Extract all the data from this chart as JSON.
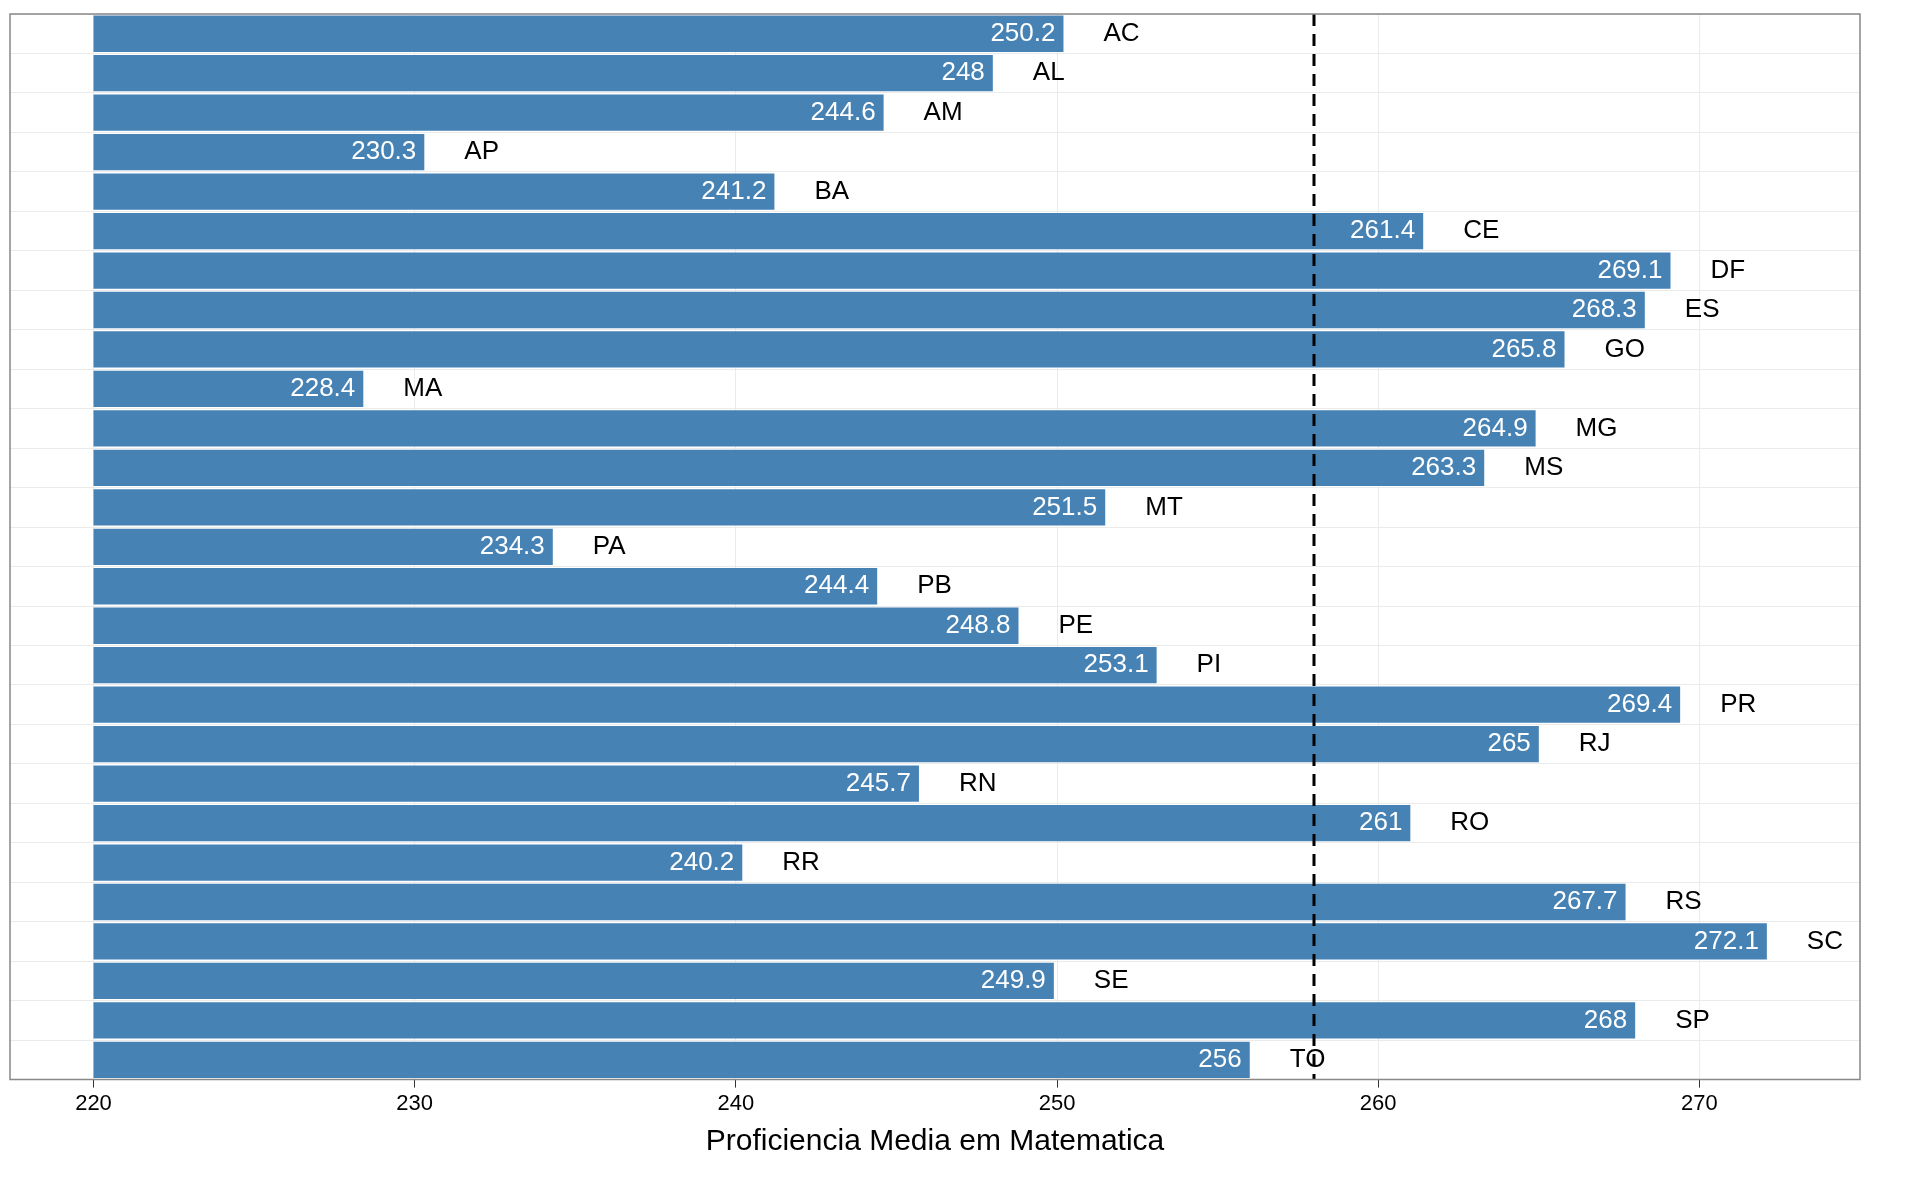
{
  "chart_data": {
    "type": "bar",
    "orientation": "horizontal",
    "xlabel": "Proficiencia Media em Matematica",
    "categories": [
      "AC",
      "AL",
      "AM",
      "AP",
      "BA",
      "CE",
      "DF",
      "ES",
      "GO",
      "MA",
      "MG",
      "MS",
      "MT",
      "PA",
      "PB",
      "PE",
      "PI",
      "PR",
      "RJ",
      "RN",
      "RO",
      "RR",
      "RS",
      "SC",
      "SE",
      "SP",
      "TO"
    ],
    "values": [
      30.2,
      28,
      24.6,
      10.3,
      21.2,
      41.4,
      49.1,
      48.3,
      45.8,
      8.4,
      44.9,
      43.3,
      31.5,
      14.3,
      24.4,
      28.8,
      33.1,
      49.4,
      45,
      25.7,
      41,
      20.2,
      47.7,
      52.1,
      29.9,
      48,
      36
    ],
    "base": [
      220,
      220,
      220,
      220,
      220,
      220,
      220,
      220,
      220,
      220,
      220,
      220,
      220,
      220,
      220,
      220,
      220,
      220,
      220,
      220,
      220,
      220,
      220,
      220,
      220,
      220,
      220
    ],
    "value_labels": [
      "250.2",
      "248",
      "244.6",
      "230.3",
      "241.2",
      "261.4",
      "269.1",
      "268.3",
      "265.8",
      "228.4",
      "264.9",
      "263.3",
      "251.5",
      "234.3",
      "244.4",
      "248.8",
      "253.1",
      "269.4",
      "265",
      "245.7",
      "261",
      "240.2",
      "267.7",
      "272.1",
      "249.9",
      "268",
      "256"
    ],
    "color": "#4682b4",
    "xlim": [
      217.4,
      275
    ],
    "xticks": [
      220,
      230,
      240,
      250,
      260,
      270
    ],
    "ref_lines": [
      {
        "axis": "x",
        "value": 258,
        "line_style": "dashed",
        "color": "#000000"
      }
    ],
    "grid": true,
    "legend": false,
    "tick_labels": "x"
  }
}
